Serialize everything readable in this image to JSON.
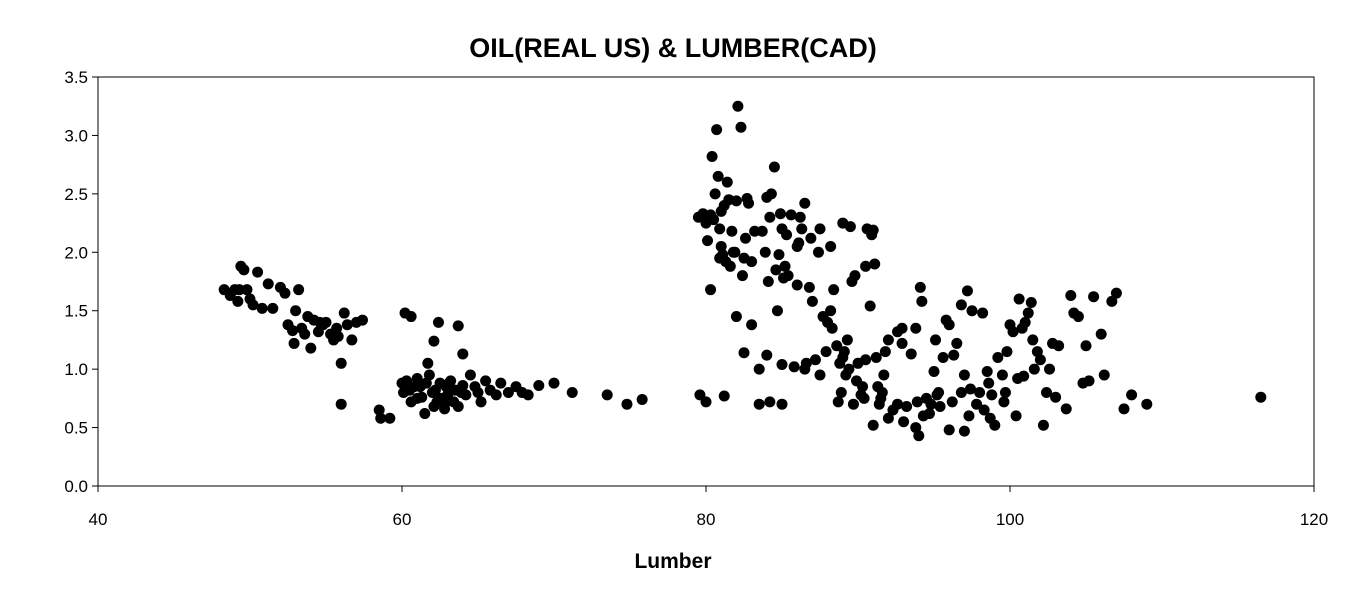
{
  "chart_data": {
    "type": "scatter",
    "title": "OIL(REAL US) & LUMBER(CAD)",
    "xlabel": "Lumber",
    "ylabel": "",
    "xlim": [
      40,
      120
    ],
    "ylim": [
      0,
      3.5
    ],
    "x_ticks": [
      "40",
      "60",
      "80",
      "100",
      "120"
    ],
    "y_ticks": [
      "0.0",
      "0.5",
      "1.0",
      "1.5",
      "2.0",
      "2.5",
      "3.0",
      "3.5"
    ],
    "grid": false,
    "legend": "none",
    "marker_color": "#000000",
    "points": [
      [
        48.3,
        1.68
      ],
      [
        48.7,
        1.63
      ],
      [
        49.0,
        1.68
      ],
      [
        49.2,
        1.58
      ],
      [
        49.4,
        1.88
      ],
      [
        49.6,
        1.85
      ],
      [
        49.8,
        1.68
      ],
      [
        50.0,
        1.6
      ],
      [
        50.2,
        1.55
      ],
      [
        50.5,
        1.83
      ],
      [
        49.3,
        1.68
      ],
      [
        50.8,
        1.52
      ],
      [
        51.2,
        1.73
      ],
      [
        51.5,
        1.52
      ],
      [
        52.0,
        1.7
      ],
      [
        52.3,
        1.65
      ],
      [
        52.5,
        1.38
      ],
      [
        52.8,
        1.33
      ],
      [
        53.0,
        1.5
      ],
      [
        53.2,
        1.68
      ],
      [
        52.9,
        1.22
      ],
      [
        53.4,
        1.35
      ],
      [
        53.6,
        1.3
      ],
      [
        53.8,
        1.45
      ],
      [
        54.0,
        1.18
      ],
      [
        54.2,
        1.42
      ],
      [
        54.5,
        1.32
      ],
      [
        54.8,
        1.38
      ],
      [
        55.0,
        1.4
      ],
      [
        55.3,
        1.3
      ],
      [
        55.5,
        1.25
      ],
      [
        55.8,
        1.28
      ],
      [
        56.0,
        1.05
      ],
      [
        56.2,
        1.48
      ],
      [
        56.4,
        1.38
      ],
      [
        56.7,
        1.25
      ],
      [
        57.0,
        1.4
      ],
      [
        57.4,
        1.42
      ],
      [
        55.7,
        1.35
      ],
      [
        54.6,
        1.4
      ],
      [
        56.0,
        0.7
      ],
      [
        58.5,
        0.65
      ],
      [
        58.6,
        0.58
      ],
      [
        59.2,
        0.58
      ],
      [
        60.0,
        0.88
      ],
      [
        60.1,
        0.8
      ],
      [
        60.3,
        0.9
      ],
      [
        60.5,
        0.82
      ],
      [
        60.6,
        0.72
      ],
      [
        60.8,
        0.85
      ],
      [
        61.0,
        0.92
      ],
      [
        61.2,
        0.85
      ],
      [
        61.3,
        0.76
      ],
      [
        61.5,
        0.62
      ],
      [
        61.6,
        0.88
      ],
      [
        61.7,
        1.05
      ],
      [
        61.8,
        0.95
      ],
      [
        62.0,
        0.8
      ],
      [
        62.1,
        0.68
      ],
      [
        62.2,
        0.82
      ],
      [
        62.3,
        0.72
      ],
      [
        62.5,
        0.88
      ],
      [
        62.6,
        0.75
      ],
      [
        62.8,
        0.7
      ],
      [
        62.9,
        0.85
      ],
      [
        63.0,
        0.78
      ],
      [
        63.2,
        0.9
      ],
      [
        63.4,
        0.72
      ],
      [
        63.5,
        0.82
      ],
      [
        63.7,
        0.68
      ],
      [
        63.9,
        0.8
      ],
      [
        64.0,
        0.86
      ],
      [
        64.2,
        0.78
      ],
      [
        64.5,
        0.95
      ],
      [
        64.8,
        0.85
      ],
      [
        65.0,
        0.8
      ],
      [
        65.2,
        0.72
      ],
      [
        65.5,
        0.9
      ],
      [
        65.8,
        0.82
      ],
      [
        66.2,
        0.78
      ],
      [
        66.5,
        0.88
      ],
      [
        67.0,
        0.8
      ],
      [
        67.5,
        0.85
      ],
      [
        67.9,
        0.8
      ],
      [
        68.3,
        0.78
      ],
      [
        69.0,
        0.86
      ],
      [
        70.0,
        0.88
      ],
      [
        71.2,
        0.8
      ],
      [
        73.5,
        0.78
      ],
      [
        74.8,
        0.7
      ],
      [
        75.8,
        0.74
      ],
      [
        60.2,
        1.48
      ],
      [
        60.6,
        1.45
      ],
      [
        62.1,
        1.24
      ],
      [
        62.4,
        1.4
      ],
      [
        63.7,
        1.37
      ],
      [
        64.0,
        1.13
      ],
      [
        62.8,
        0.66
      ],
      [
        61.0,
        0.75
      ],
      [
        63.1,
        0.88
      ],
      [
        79.6,
        0.78
      ],
      [
        80.0,
        0.72
      ],
      [
        81.2,
        0.77
      ],
      [
        79.5,
        2.3
      ],
      [
        79.8,
        2.33
      ],
      [
        80.0,
        2.25
      ],
      [
        80.1,
        2.1
      ],
      [
        80.3,
        2.32
      ],
      [
        80.4,
        2.82
      ],
      [
        80.5,
        2.28
      ],
      [
        80.6,
        2.5
      ],
      [
        80.7,
        3.05
      ],
      [
        80.8,
        2.65
      ],
      [
        80.9,
        2.2
      ],
      [
        81.0,
        2.05
      ],
      [
        81.1,
        1.98
      ],
      [
        81.2,
        2.4
      ],
      [
        81.3,
        1.92
      ],
      [
        81.4,
        2.6
      ],
      [
        81.5,
        2.45
      ],
      [
        81.6,
        1.88
      ],
      [
        81.7,
        2.18
      ],
      [
        81.8,
        2.0
      ],
      [
        82.0,
        2.44
      ],
      [
        82.1,
        3.25
      ],
      [
        82.3,
        3.07
      ],
      [
        82.4,
        1.8
      ],
      [
        82.5,
        1.95
      ],
      [
        82.6,
        2.12
      ],
      [
        82.7,
        2.46
      ],
      [
        82.8,
        2.42
      ],
      [
        83.0,
        1.92
      ],
      [
        83.2,
        2.18
      ],
      [
        83.5,
        1.0
      ],
      [
        83.7,
        2.18
      ],
      [
        84.0,
        2.47
      ],
      [
        84.1,
        1.75
      ],
      [
        84.2,
        2.3
      ],
      [
        84.3,
        2.5
      ],
      [
        84.5,
        2.73
      ],
      [
        84.6,
        1.85
      ],
      [
        84.7,
        1.5
      ],
      [
        84.9,
        2.33
      ],
      [
        85.0,
        2.2
      ],
      [
        85.1,
        1.78
      ],
      [
        85.2,
        1.88
      ],
      [
        85.4,
        1.8
      ],
      [
        85.6,
        2.32
      ],
      [
        85.8,
        1.02
      ],
      [
        86.0,
        1.72
      ],
      [
        86.1,
        2.08
      ],
      [
        86.2,
        2.3
      ],
      [
        86.3,
        2.2
      ],
      [
        86.5,
        2.42
      ],
      [
        86.8,
        1.7
      ],
      [
        87.0,
        1.58
      ],
      [
        87.2,
        1.08
      ],
      [
        87.4,
        2.0
      ],
      [
        87.5,
        2.2
      ],
      [
        87.7,
        1.45
      ],
      [
        88.0,
        1.4
      ],
      [
        88.2,
        1.5
      ],
      [
        88.4,
        1.68
      ],
      [
        88.6,
        1.2
      ],
      [
        88.8,
        1.05
      ],
      [
        89.0,
        1.1
      ],
      [
        89.1,
        1.15
      ],
      [
        89.2,
        0.95
      ],
      [
        89.4,
        1.0
      ],
      [
        89.5,
        2.22
      ],
      [
        89.6,
        1.75
      ],
      [
        89.8,
        1.8
      ],
      [
        90.0,
        1.05
      ],
      [
        90.2,
        0.78
      ],
      [
        90.3,
        0.85
      ],
      [
        90.5,
        1.88
      ],
      [
        90.6,
        2.2
      ],
      [
        90.8,
        1.54
      ],
      [
        90.9,
        2.15
      ],
      [
        91.0,
        2.19
      ],
      [
        91.1,
        1.9
      ],
      [
        91.2,
        1.1
      ],
      [
        91.4,
        0.7
      ],
      [
        91.5,
        0.75
      ],
      [
        91.6,
        0.8
      ],
      [
        91.8,
        1.15
      ],
      [
        92.0,
        1.25
      ],
      [
        92.3,
        0.65
      ],
      [
        92.6,
        1.32
      ],
      [
        92.9,
        1.35
      ],
      [
        93.2,
        0.68
      ],
      [
        93.5,
        1.13
      ],
      [
        93.8,
        0.5
      ],
      [
        94.0,
        0.43
      ],
      [
        94.1,
        1.7
      ],
      [
        94.2,
        1.58
      ],
      [
        94.3,
        0.6
      ],
      [
        94.5,
        0.75
      ],
      [
        94.8,
        0.7
      ],
      [
        95.0,
        0.98
      ],
      [
        95.2,
        0.78
      ],
      [
        95.4,
        0.68
      ],
      [
        95.6,
        1.1
      ],
      [
        95.8,
        1.42
      ],
      [
        96.0,
        1.38
      ],
      [
        96.2,
        0.72
      ],
      [
        96.5,
        1.22
      ],
      [
        96.8,
        1.55
      ],
      [
        97.0,
        0.95
      ],
      [
        97.2,
        1.67
      ],
      [
        97.3,
        0.6
      ],
      [
        97.5,
        1.5
      ],
      [
        97.8,
        0.7
      ],
      [
        98.0,
        0.8
      ],
      [
        98.2,
        1.48
      ],
      [
        98.5,
        0.98
      ],
      [
        98.8,
        0.78
      ],
      [
        99.0,
        0.52
      ],
      [
        99.2,
        1.1
      ],
      [
        99.5,
        0.95
      ],
      [
        99.8,
        1.15
      ],
      [
        100.0,
        1.38
      ],
      [
        100.2,
        1.32
      ],
      [
        100.4,
        0.6
      ],
      [
        100.5,
        0.92
      ],
      [
        100.6,
        1.6
      ],
      [
        100.8,
        1.35
      ],
      [
        101.0,
        1.4
      ],
      [
        101.2,
        1.48
      ],
      [
        101.4,
        1.57
      ],
      [
        101.5,
        1.25
      ],
      [
        101.6,
        1.0
      ],
      [
        101.8,
        1.15
      ],
      [
        102.0,
        1.08
      ],
      [
        102.2,
        0.52
      ],
      [
        102.4,
        0.8
      ],
      [
        102.6,
        1.0
      ],
      [
        102.8,
        1.22
      ],
      [
        103.0,
        0.76
      ],
      [
        103.2,
        1.2
      ],
      [
        103.7,
        0.66
      ],
      [
        104.0,
        1.63
      ],
      [
        104.2,
        1.48
      ],
      [
        104.5,
        1.45
      ],
      [
        104.8,
        0.88
      ],
      [
        105.0,
        1.2
      ],
      [
        105.2,
        0.9
      ],
      [
        105.5,
        1.62
      ],
      [
        106.0,
        1.3
      ],
      [
        106.2,
        0.95
      ],
      [
        106.7,
        1.58
      ],
      [
        107.0,
        1.65
      ],
      [
        107.5,
        0.66
      ],
      [
        108.0,
        0.78
      ],
      [
        109.0,
        0.7
      ],
      [
        116.5,
        0.76
      ],
      [
        80.3,
        1.68
      ],
      [
        82.0,
        1.45
      ],
      [
        82.5,
        1.14
      ],
      [
        83.0,
        1.38
      ],
      [
        84.0,
        1.12
      ],
      [
        85.0,
        1.04
      ],
      [
        86.5,
        1.0
      ],
      [
        87.5,
        0.95
      ],
      [
        88.7,
        0.72
      ],
      [
        89.9,
        0.9
      ],
      [
        91.0,
        0.52
      ],
      [
        92.0,
        0.58
      ],
      [
        93.0,
        0.55
      ],
      [
        94.7,
        0.62
      ],
      [
        96.0,
        0.48
      ],
      [
        97.0,
        0.47
      ],
      [
        98.7,
        0.58
      ],
      [
        83.5,
        0.7
      ],
      [
        84.2,
        0.72
      ],
      [
        85.0,
        0.7
      ],
      [
        86.6,
        1.05
      ],
      [
        87.9,
        1.15
      ],
      [
        88.3,
        1.35
      ],
      [
        89.3,
        1.25
      ],
      [
        90.5,
        1.08
      ],
      [
        91.7,
        0.95
      ],
      [
        92.9,
        1.22
      ],
      [
        93.8,
        1.35
      ],
      [
        95.1,
        1.25
      ],
      [
        96.3,
        1.12
      ],
      [
        97.4,
        0.83
      ],
      [
        98.6,
        0.88
      ],
      [
        99.7,
        0.8
      ],
      [
        100.9,
        0.94
      ],
      [
        88.9,
        0.8
      ],
      [
        89.7,
        0.7
      ],
      [
        90.4,
        0.75
      ],
      [
        91.3,
        0.85
      ],
      [
        92.6,
        0.7
      ],
      [
        93.9,
        0.72
      ],
      [
        95.3,
        0.8
      ],
      [
        96.8,
        0.8
      ],
      [
        98.3,
        0.65
      ],
      [
        99.6,
        0.72
      ],
      [
        84.8,
        1.98
      ],
      [
        85.3,
        2.15
      ],
      [
        86.0,
        2.05
      ],
      [
        81.0,
        2.35
      ],
      [
        80.9,
        1.95
      ],
      [
        81.9,
        2.0
      ],
      [
        83.9,
        2.0
      ],
      [
        86.9,
        2.12
      ],
      [
        88.2,
        2.05
      ],
      [
        89.0,
        2.25
      ]
    ]
  }
}
